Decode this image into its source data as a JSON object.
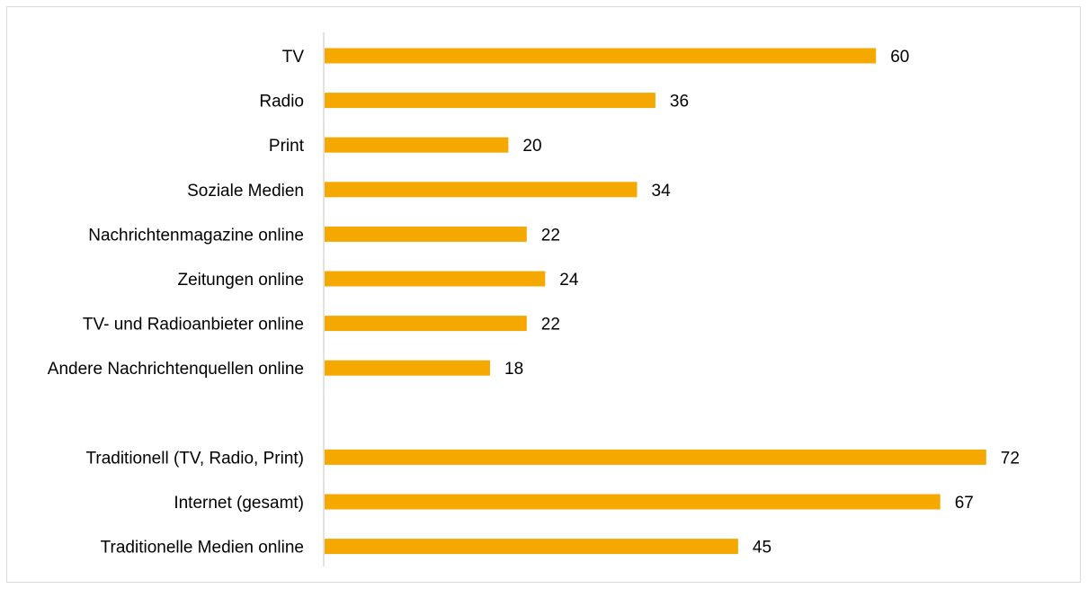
{
  "chart_data": {
    "type": "bar",
    "orientation": "horizontal",
    "categories": [
      "TV",
      "Radio",
      "Print",
      "Soziale Medien",
      "Nachrichtenmagazine online",
      "Zeitungen online",
      "TV- und Radioanbieter online",
      "Andere Nachrichtenquellen online",
      "Traditionell (TV, Radio, Print)",
      "Internet (gesamt)",
      "Traditionelle Medien online"
    ],
    "values": [
      60,
      36,
      20,
      34,
      22,
      24,
      22,
      18,
      72,
      67,
      45
    ],
    "value_labels": [
      "60",
      "36",
      "20",
      "34",
      "22",
      "24",
      "22",
      "18",
      "72",
      "67",
      "45"
    ],
    "groups": [
      {
        "start": 0,
        "end": 7
      },
      {
        "start": 8,
        "end": 10
      }
    ],
    "xlim": [
      0,
      80
    ],
    "grid": false,
    "legend": "none",
    "colors": {
      "bar": "#f5a800",
      "axis": "#d9d9d9",
      "text": "#000000"
    }
  }
}
